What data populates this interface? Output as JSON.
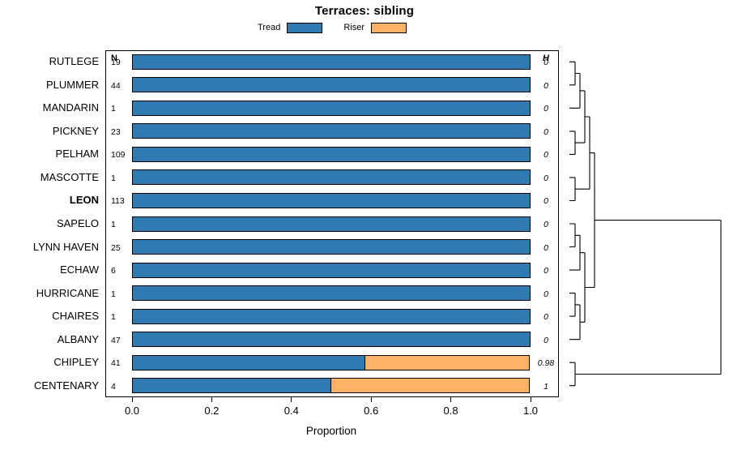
{
  "title": "Terraces: sibling",
  "legend": {
    "items": [
      {
        "label": "Tread",
        "color": "#2f7bb1"
      },
      {
        "label": "Riser",
        "color": "#fcb266"
      }
    ]
  },
  "headers": {
    "n": "N",
    "h": "H"
  },
  "axis": {
    "xlabel": "Proportion",
    "ticks": [
      0,
      0.2,
      0.4,
      0.6,
      0.8,
      1.0
    ],
    "tick_labels": [
      "0.0",
      "0.2",
      "0.4",
      "0.6",
      "0.8",
      "1.0"
    ]
  },
  "chart_data": {
    "type": "bar",
    "orientation": "horizontal",
    "stacked": true,
    "title": "Terraces: sibling",
    "xlabel": "Proportion",
    "xlim": [
      0,
      1
    ],
    "grid": false,
    "legend_position": "top",
    "series_names": [
      "Tread",
      "Riser"
    ],
    "rows": [
      {
        "label": "RUTLEGE",
        "n": 19,
        "tread": 1,
        "riser": 0,
        "h": "0",
        "bold": false
      },
      {
        "label": "PLUMMER",
        "n": 44,
        "tread": 1,
        "riser": 0,
        "h": "0",
        "bold": false
      },
      {
        "label": "MANDARIN",
        "n": 1,
        "tread": 1,
        "riser": 0,
        "h": "0",
        "bold": false
      },
      {
        "label": "PICKNEY",
        "n": 23,
        "tread": 1,
        "riser": 0,
        "h": "0",
        "bold": false
      },
      {
        "label": "PELHAM",
        "n": 109,
        "tread": 1,
        "riser": 0,
        "h": "0",
        "bold": false
      },
      {
        "label": "MASCOTTE",
        "n": 1,
        "tread": 1,
        "riser": 0,
        "h": "0",
        "bold": false
      },
      {
        "label": "LEON",
        "n": 113,
        "tread": 1,
        "riser": 0,
        "h": "0",
        "bold": true
      },
      {
        "label": "SAPELO",
        "n": 1,
        "tread": 1,
        "riser": 0,
        "h": "0",
        "bold": false
      },
      {
        "label": "LYNN HAVEN",
        "n": 25,
        "tread": 1,
        "riser": 0,
        "h": "0",
        "bold": false
      },
      {
        "label": "ECHAW",
        "n": 6,
        "tread": 1,
        "riser": 0,
        "h": "0",
        "bold": false
      },
      {
        "label": "HURRICANE",
        "n": 1,
        "tread": 1,
        "riser": 0,
        "h": "0",
        "bold": false
      },
      {
        "label": "CHAIRES",
        "n": 1,
        "tread": 1,
        "riser": 0,
        "h": "0",
        "bold": false
      },
      {
        "label": "ALBANY",
        "n": 47,
        "tread": 1,
        "riser": 0,
        "h": "0",
        "bold": false
      },
      {
        "label": "CHIPLEY",
        "n": 41,
        "tread": 0.585,
        "riser": 0.415,
        "h": "0.98",
        "bold": false
      },
      {
        "label": "CENTENARY",
        "n": 4,
        "tread": 0.5,
        "riser": 0.5,
        "h": "1",
        "bold": false
      }
    ],
    "dendrogram_note": "right-side hierarchical clustering: rows with H=0 merge at near-zero distance in sub-clusters (RUTLEGE..LEON and SAPELO..ALBANY), CHIPLEY+CENTENARY pair joins the rest at maximum distance"
  }
}
